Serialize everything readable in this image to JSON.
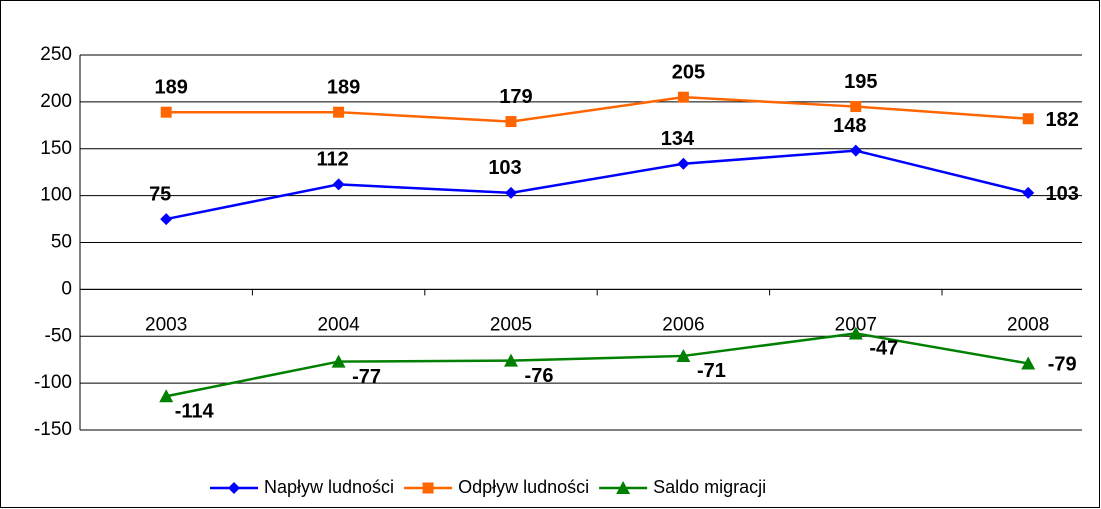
{
  "chart_data": {
    "type": "line",
    "categories": [
      "2003",
      "2004",
      "2005",
      "2006",
      "2007",
      "2008"
    ],
    "series": [
      {
        "name": "Napływ ludności",
        "color": "#0000ff",
        "marker": "diamond",
        "values": [
          75,
          112,
          103,
          134,
          148,
          103
        ]
      },
      {
        "name": "Odpływ ludności",
        "color": "#ff6600",
        "marker": "square",
        "values": [
          189,
          189,
          179,
          205,
          195,
          182
        ]
      },
      {
        "name": "Saldo migracji",
        "color": "#008000",
        "marker": "triangle",
        "values": [
          -114,
          -77,
          -76,
          -71,
          -47,
          -79
        ]
      }
    ],
    "ylim": [
      -150,
      250
    ],
    "yticks": [
      -150,
      -100,
      -50,
      0,
      50,
      100,
      150,
      200,
      250
    ],
    "grid": true,
    "legend": "bottom"
  }
}
